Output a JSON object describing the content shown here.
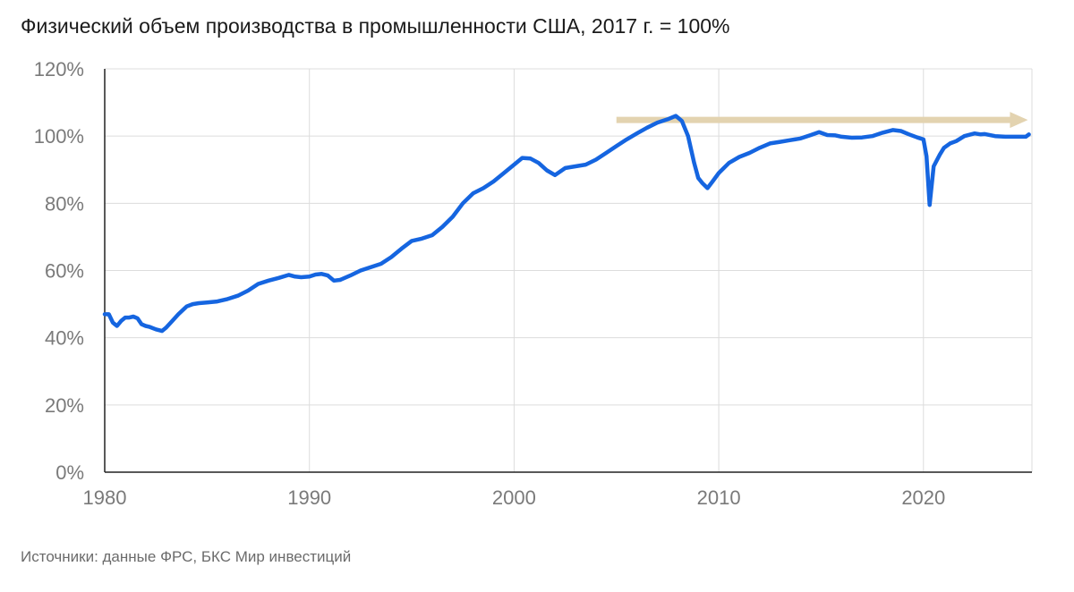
{
  "title": "Физический объем производства в промышленности США, 2017 г. = 100%",
  "source": "Источники: данные ФРС, БКС Мир инвестиций",
  "chart_data": {
    "type": "line",
    "title": "Физический объем производства в промышленности США, 2017 г. = 100%",
    "xlabel": "",
    "ylabel": "",
    "xlim": [
      1980,
      2025.3
    ],
    "ylim": [
      0,
      120
    ],
    "x_ticks": [
      1980,
      1990,
      2000,
      2010,
      2020
    ],
    "x_tick_labels": [
      "1980",
      "1990",
      "2000",
      "2010",
      "2020"
    ],
    "y_ticks": [
      0,
      20,
      40,
      60,
      80,
      100,
      120
    ],
    "y_tick_labels": [
      "0%",
      "20%",
      "40%",
      "60%",
      "80%",
      "100%",
      "120%"
    ],
    "grid": true,
    "line_color": "#1565e0",
    "arrow_color": "#e3d3b0",
    "arrow": {
      "x_start": 2005.0,
      "x_end": 2025.1,
      "y": 104.8
    },
    "series": [
      {
        "x": [
          1980.0,
          1980.2,
          1980.4,
          1980.6,
          1980.8,
          1981.0,
          1981.2,
          1981.4,
          1981.6,
          1981.8,
          1982.0,
          1982.2,
          1982.5,
          1982.8,
          1983.0,
          1983.3,
          1983.6,
          1984.0,
          1984.3,
          1984.6,
          1985.0,
          1985.5,
          1986.0,
          1986.5,
          1987.0,
          1987.5,
          1988.0,
          1988.5,
          1989.0,
          1989.3,
          1989.6,
          1990.0,
          1990.3,
          1990.6,
          1990.9,
          1991.2,
          1991.5,
          1992.0,
          1992.5,
          1993.0,
          1993.5,
          1994.0,
          1994.5,
          1995.0,
          1995.5,
          1996.0,
          1996.5,
          1997.0,
          1997.5,
          1998.0,
          1998.5,
          1999.0,
          1999.5,
          2000.0,
          2000.4,
          2000.8,
          2001.2,
          2001.6,
          2002.0,
          2002.5,
          2003.0,
          2003.5,
          2004.0,
          2004.5,
          2005.0,
          2005.5,
          2006.0,
          2006.5,
          2007.0,
          2007.5,
          2007.9,
          2008.2,
          2008.5,
          2008.8,
          2009.0,
          2009.2,
          2009.45,
          2009.7,
          2010.0,
          2010.5,
          2011.0,
          2011.5,
          2012.0,
          2012.5,
          2013.0,
          2013.5,
          2014.0,
          2014.5,
          2014.9,
          2015.3,
          2015.7,
          2016.0,
          2016.5,
          2017.0,
          2017.5,
          2018.0,
          2018.5,
          2018.9,
          2019.3,
          2019.7,
          2020.0,
          2020.15,
          2020.3,
          2020.5,
          2020.8,
          2021.0,
          2021.3,
          2021.6,
          2022.0,
          2022.5,
          2022.8,
          2023.0,
          2023.5,
          2024.0,
          2024.5,
          2025.0,
          2025.15
        ],
        "y": [
          47.0,
          47.0,
          44.5,
          43.5,
          45.0,
          46.0,
          46.0,
          46.3,
          45.8,
          44.0,
          43.5,
          43.2,
          42.5,
          42.0,
          43.0,
          45.0,
          47.0,
          49.3,
          50.0,
          50.3,
          50.5,
          50.8,
          51.5,
          52.5,
          54.0,
          56.0,
          57.0,
          57.8,
          58.7,
          58.2,
          58.0,
          58.2,
          58.8,
          59.0,
          58.5,
          57.0,
          57.2,
          58.5,
          60.0,
          61.0,
          62.0,
          64.0,
          66.5,
          68.8,
          69.5,
          70.5,
          73.0,
          76.0,
          80.0,
          83.0,
          84.5,
          86.5,
          89.0,
          91.5,
          93.5,
          93.3,
          92.0,
          89.8,
          88.4,
          90.5,
          91.0,
          91.5,
          93.0,
          95.0,
          97.0,
          99.0,
          100.8,
          102.5,
          104.0,
          105.0,
          106.0,
          104.5,
          100.0,
          92.0,
          87.5,
          86.0,
          84.5,
          86.5,
          89.0,
          92.0,
          93.8,
          95.0,
          96.5,
          97.8,
          98.3,
          98.8,
          99.3,
          100.3,
          101.2,
          100.3,
          100.2,
          99.8,
          99.5,
          99.6,
          100.0,
          101.0,
          101.8,
          101.5,
          100.5,
          99.6,
          99.0,
          94.0,
          79.5,
          91.0,
          94.5,
          96.5,
          97.8,
          98.5,
          100.0,
          100.8,
          100.5,
          100.6,
          100.0,
          99.8,
          99.8,
          99.8,
          100.5
        ]
      }
    ]
  }
}
